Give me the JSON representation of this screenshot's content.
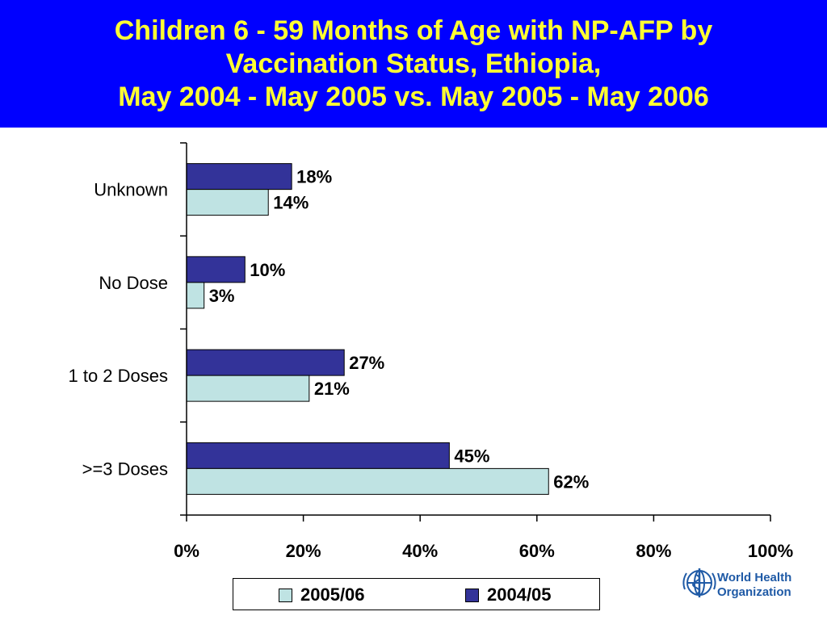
{
  "title": {
    "lines": [
      "Children 6 - 59 Months of Age with NP-AFP by",
      "Vaccination Status, Ethiopia,",
      "May 2004 - May 2005 vs. May 2005 - May 2006"
    ],
    "background_color": "#0000ff",
    "text_color": "#ffff33"
  },
  "chart_data": {
    "type": "bar",
    "orientation": "horizontal",
    "categories": [
      "Unknown",
      "No Dose",
      "1 to 2 Doses",
      ">=3 Doses"
    ],
    "series": [
      {
        "name": "2004/05",
        "color": "#333399",
        "values": [
          18,
          10,
          27,
          45
        ],
        "labels": [
          "18%",
          "10%",
          "27%",
          "45%"
        ]
      },
      {
        "name": "2005/06",
        "color": "#bfe3e3",
        "values": [
          14,
          3,
          21,
          62
        ],
        "labels": [
          "14%",
          "3%",
          "21%",
          "62%"
        ]
      }
    ],
    "xlim": [
      0,
      100
    ],
    "xticks": [
      0,
      20,
      40,
      60,
      80,
      100
    ],
    "xtick_labels": [
      "0%",
      "20%",
      "40%",
      "60%",
      "80%",
      "100%"
    ],
    "grid": false,
    "legend": {
      "placement": "bottom",
      "entries": [
        {
          "name": "2005/06",
          "color": "#bfe3e3"
        },
        {
          "name": "2004/05",
          "color": "#333399"
        }
      ]
    }
  },
  "logo": {
    "icon": "who-emblem-icon",
    "lines": [
      "World Health",
      "Organization"
    ],
    "color": "#1f5aa6"
  }
}
